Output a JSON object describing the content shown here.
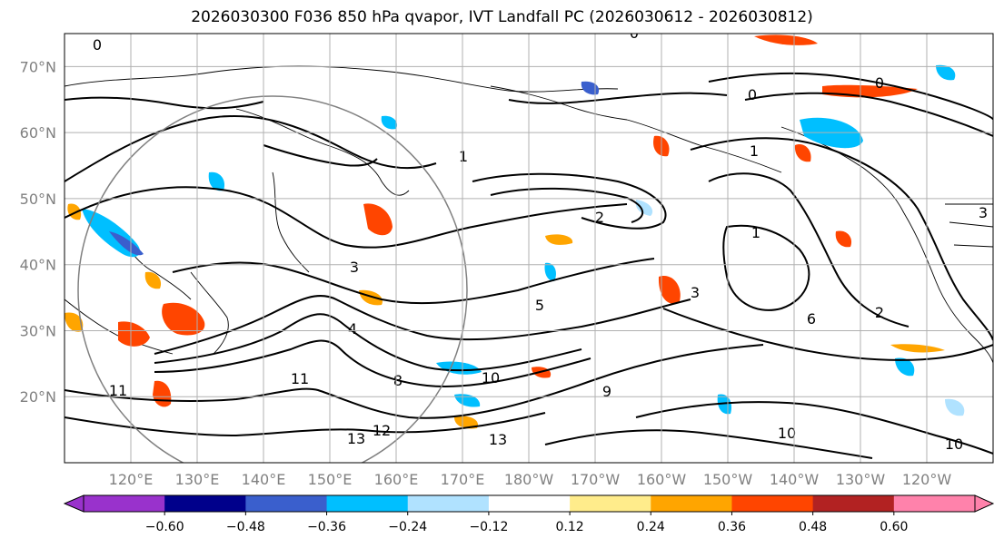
{
  "title": "2026030300 F036 850 hPa qvapor, IVT Landfall PC (2026030612 - 2026030812)",
  "axes": {
    "lat_labels": [
      "70°N",
      "60°N",
      "50°N",
      "40°N",
      "30°N",
      "20°N"
    ],
    "lat_values": [
      70,
      60,
      50,
      40,
      30,
      20
    ],
    "lon_labels": [
      "120°E",
      "130°E",
      "140°E",
      "150°E",
      "160°E",
      "170°E",
      "180°W",
      "170°W",
      "160°W",
      "150°W",
      "140°W",
      "130°W",
      "120°W"
    ],
    "lat_range": [
      10,
      75
    ],
    "lon_range_east": [
      110,
      250
    ]
  },
  "colorbar": {
    "ticks": [
      "−0.60",
      "−0.48",
      "−0.36",
      "−0.24",
      "−0.12",
      "0.12",
      "0.24",
      "0.36",
      "0.48",
      "0.60"
    ],
    "colors": [
      "#9932cc",
      "#00008b",
      "#3a5fcd",
      "#00bfff",
      "#b0e2ff",
      "#ffffff",
      "#ffec8b",
      "#ffa500",
      "#ff4500",
      "#b22222",
      "#ff82ab"
    ],
    "extend": "both"
  },
  "contour_labels": [
    "0",
    "0",
    "0",
    "0",
    "1",
    "1",
    "1",
    "2",
    "2",
    "3",
    "3",
    "3",
    "4",
    "5",
    "6",
    "8",
    "9",
    "10",
    "10",
    "11",
    "11",
    "12",
    "13",
    "13",
    "10"
  ],
  "style": {
    "contour_color": "#000000",
    "grid_color": "#b0b0b0",
    "circle_color": "#808080"
  }
}
